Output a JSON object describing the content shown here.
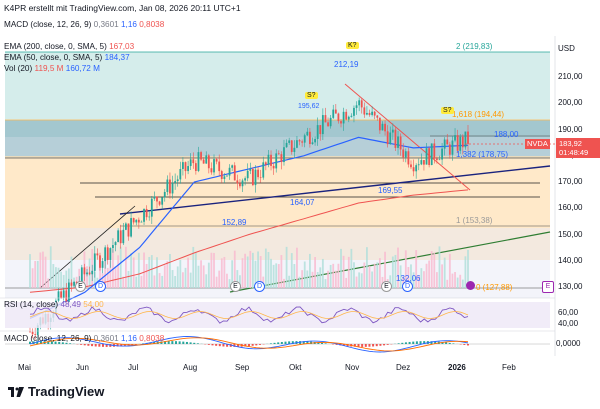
{
  "header": {
    "caption": "K4PR erstellt mit TradingView.com, Jan 08, 2026 20:11 UTC+1",
    "macd_top": {
      "label": "MACD (close, 12, 26, 9)",
      "v1": "0,3601",
      "v2": "1,16",
      "v3": "0,8038"
    }
  },
  "legends": {
    "ema200": {
      "label": "EMA (200, close, 0, SMA, 5)",
      "value": "167,03"
    },
    "ema50": {
      "label": "EMA (50, close, 0, SMA, 5)",
      "value": "184,37"
    },
    "vol": {
      "label": "Vol (20)",
      "v1": "119,5 M",
      "v2": "160,72 M"
    },
    "rsi": {
      "label": "RSI (14, close)",
      "v1": "48,49",
      "v2": "54,00"
    },
    "macd": {
      "label": "MACD (close, 12, 26, 9)",
      "v1": "0,3601",
      "v2": "1,16",
      "v3": "0,8038"
    }
  },
  "price_axis": {
    "currency": "USD",
    "ticks": [
      "210,00",
      "200,00",
      "190,00",
      "180,00",
      "170,00",
      "160,00",
      "150,00",
      "140,00",
      "130,00"
    ],
    "rsi_ticks": [
      "60,00",
      "40,00"
    ],
    "macd_ticks": [
      "0,0000"
    ],
    "nvda_label": "NVDA",
    "nvda_price": "183,92",
    "nvda_time": "01:48:49"
  },
  "annotations": {
    "fib_2": "2 (219,83)",
    "fib_1618": "1,618 (194,44)",
    "fib_1382": "1,382 (178,75)",
    "fib_1": "1 (153,38)",
    "fib_0": "0 (127,88)",
    "high_212": "212,19",
    "level_188": "188,00",
    "level_195": "195,62",
    "level_16955": "169,55",
    "level_16407": "164,07",
    "level_15289": "152,89",
    "level_13206": "132,06",
    "marker_k": "K?",
    "marker_s1": "S?",
    "marker_s2": "S?",
    "marker_e": "E",
    "marker_d": "D"
  },
  "time_axis": [
    "Mai",
    "Jun",
    "Jul",
    "Aug",
    "Sep",
    "Okt",
    "Nov",
    "Dez",
    "2026",
    "Feb"
  ],
  "footer": {
    "brand": "TradingView"
  },
  "colors": {
    "up": "#26a69a",
    "down": "#ef5350",
    "ema50": "#2962ff",
    "ema200": "#ef5350",
    "teal_zone": "#b2dfdb",
    "orange_zone": "#ffe0b2"
  },
  "chart_data": {
    "type": "candlestick",
    "title": "NVDA",
    "ylabel": "USD",
    "ylim": [
      125,
      222
    ],
    "x": [
      "Mai",
      "Jun",
      "Jul",
      "Aug",
      "Sep",
      "Okt",
      "Nov",
      "Dez",
      "2026"
    ],
    "close": [
      113,
      135,
      157,
      178,
      171,
      187,
      200,
      178,
      186
    ],
    "ema50": [
      118,
      128,
      145,
      170,
      175,
      180,
      187,
      183,
      184
    ],
    "ema200": [
      128,
      130,
      135,
      143,
      150,
      156,
      162,
      165,
      167
    ],
    "fib_levels": [
      219.83,
      194.44,
      178.75,
      153.38,
      127.88
    ],
    "last_price": 183.92
  }
}
